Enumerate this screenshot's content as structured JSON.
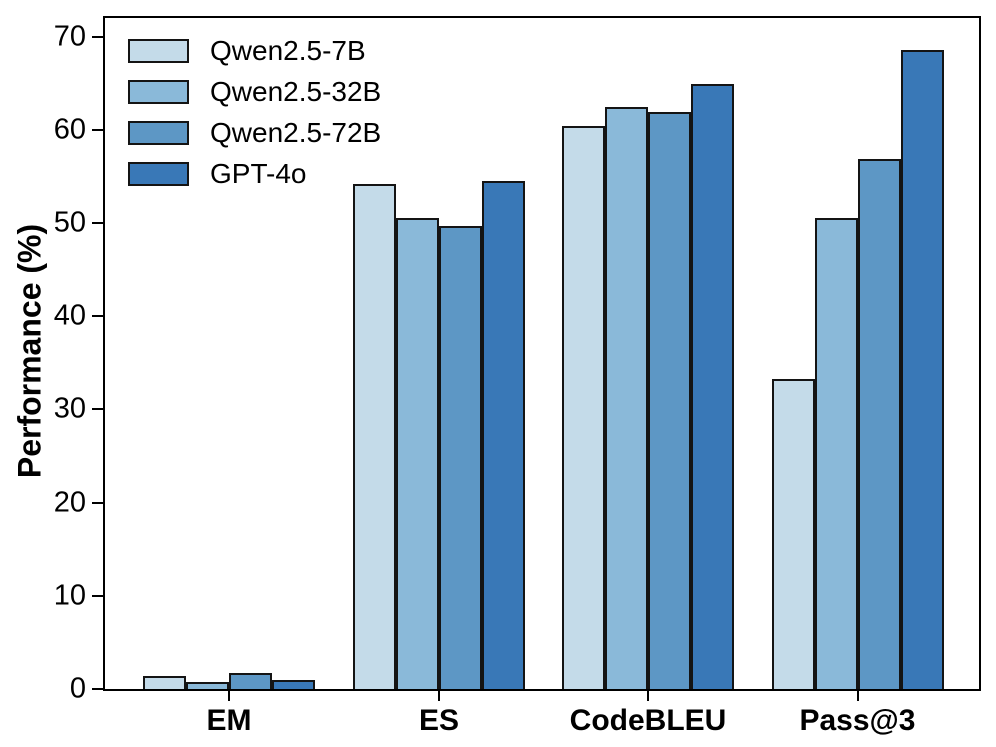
{
  "figure": {
    "background": "#ffffff",
    "axis_color": "#000000"
  },
  "chart_data": {
    "type": "bar",
    "title": "",
    "xlabel": "",
    "ylabel": "Performance (%)",
    "categories": [
      "EM",
      "ES",
      "CodeBLEU",
      "Pass@3"
    ],
    "series": [
      {
        "name": "Qwen2.5-7B",
        "color": "#c4dbe9",
        "values": [
          1.4,
          54.2,
          60.4,
          33.3
        ]
      },
      {
        "name": "Qwen2.5-32B",
        "color": "#8ab9d9",
        "values": [
          0.8,
          50.5,
          62.5,
          50.5
        ]
      },
      {
        "name": "Qwen2.5-72B",
        "color": "#5d97c5",
        "values": [
          1.7,
          49.7,
          61.9,
          56.9
        ]
      },
      {
        "name": "GPT-4o",
        "color": "#3978b7",
        "values": [
          1.0,
          54.5,
          64.9,
          68.6
        ]
      }
    ],
    "ylim": [
      0,
      72
    ],
    "yticks": [
      0,
      10,
      20,
      30,
      40,
      50,
      60,
      70
    ],
    "grid": false,
    "legend_position": "upper-left",
    "bar_edge_color": "#141414"
  }
}
